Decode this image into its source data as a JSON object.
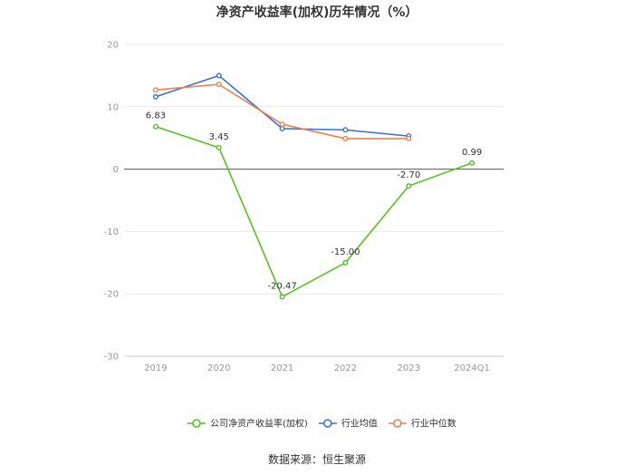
{
  "chart_data": {
    "type": "line",
    "title": "净资产收益率(加权)历年情况（%）",
    "categories": [
      "2019",
      "2020",
      "2021",
      "2022",
      "2023",
      "2024Q1"
    ],
    "ylim": [
      -30,
      20
    ],
    "yticks": [
      "20",
      "10",
      "0",
      "-10",
      "-20",
      "-30"
    ],
    "ytick_values": [
      20,
      10,
      0,
      -10,
      -20,
      -30
    ],
    "grid": true,
    "legend_position": "bottom",
    "series": [
      {
        "name": "公司净资产收益率(加权)",
        "color": "#52c41a",
        "values": [
          6.83,
          3.45,
          -20.47,
          -15.0,
          -2.7,
          0.99
        ],
        "labels": [
          "6.83",
          "3.45",
          "-20.47",
          "-15.00",
          "-2.70",
          "0.99"
        ]
      },
      {
        "name": "行业均值",
        "color": "#3a6fd8",
        "values": [
          11.6,
          15.0,
          6.5,
          6.3,
          5.3,
          null
        ]
      },
      {
        "name": "行业中位数",
        "color": "#f08050",
        "values": [
          12.7,
          13.6,
          7.2,
          4.9,
          4.9,
          null
        ]
      }
    ]
  },
  "source": "数据来源：恒生聚源"
}
